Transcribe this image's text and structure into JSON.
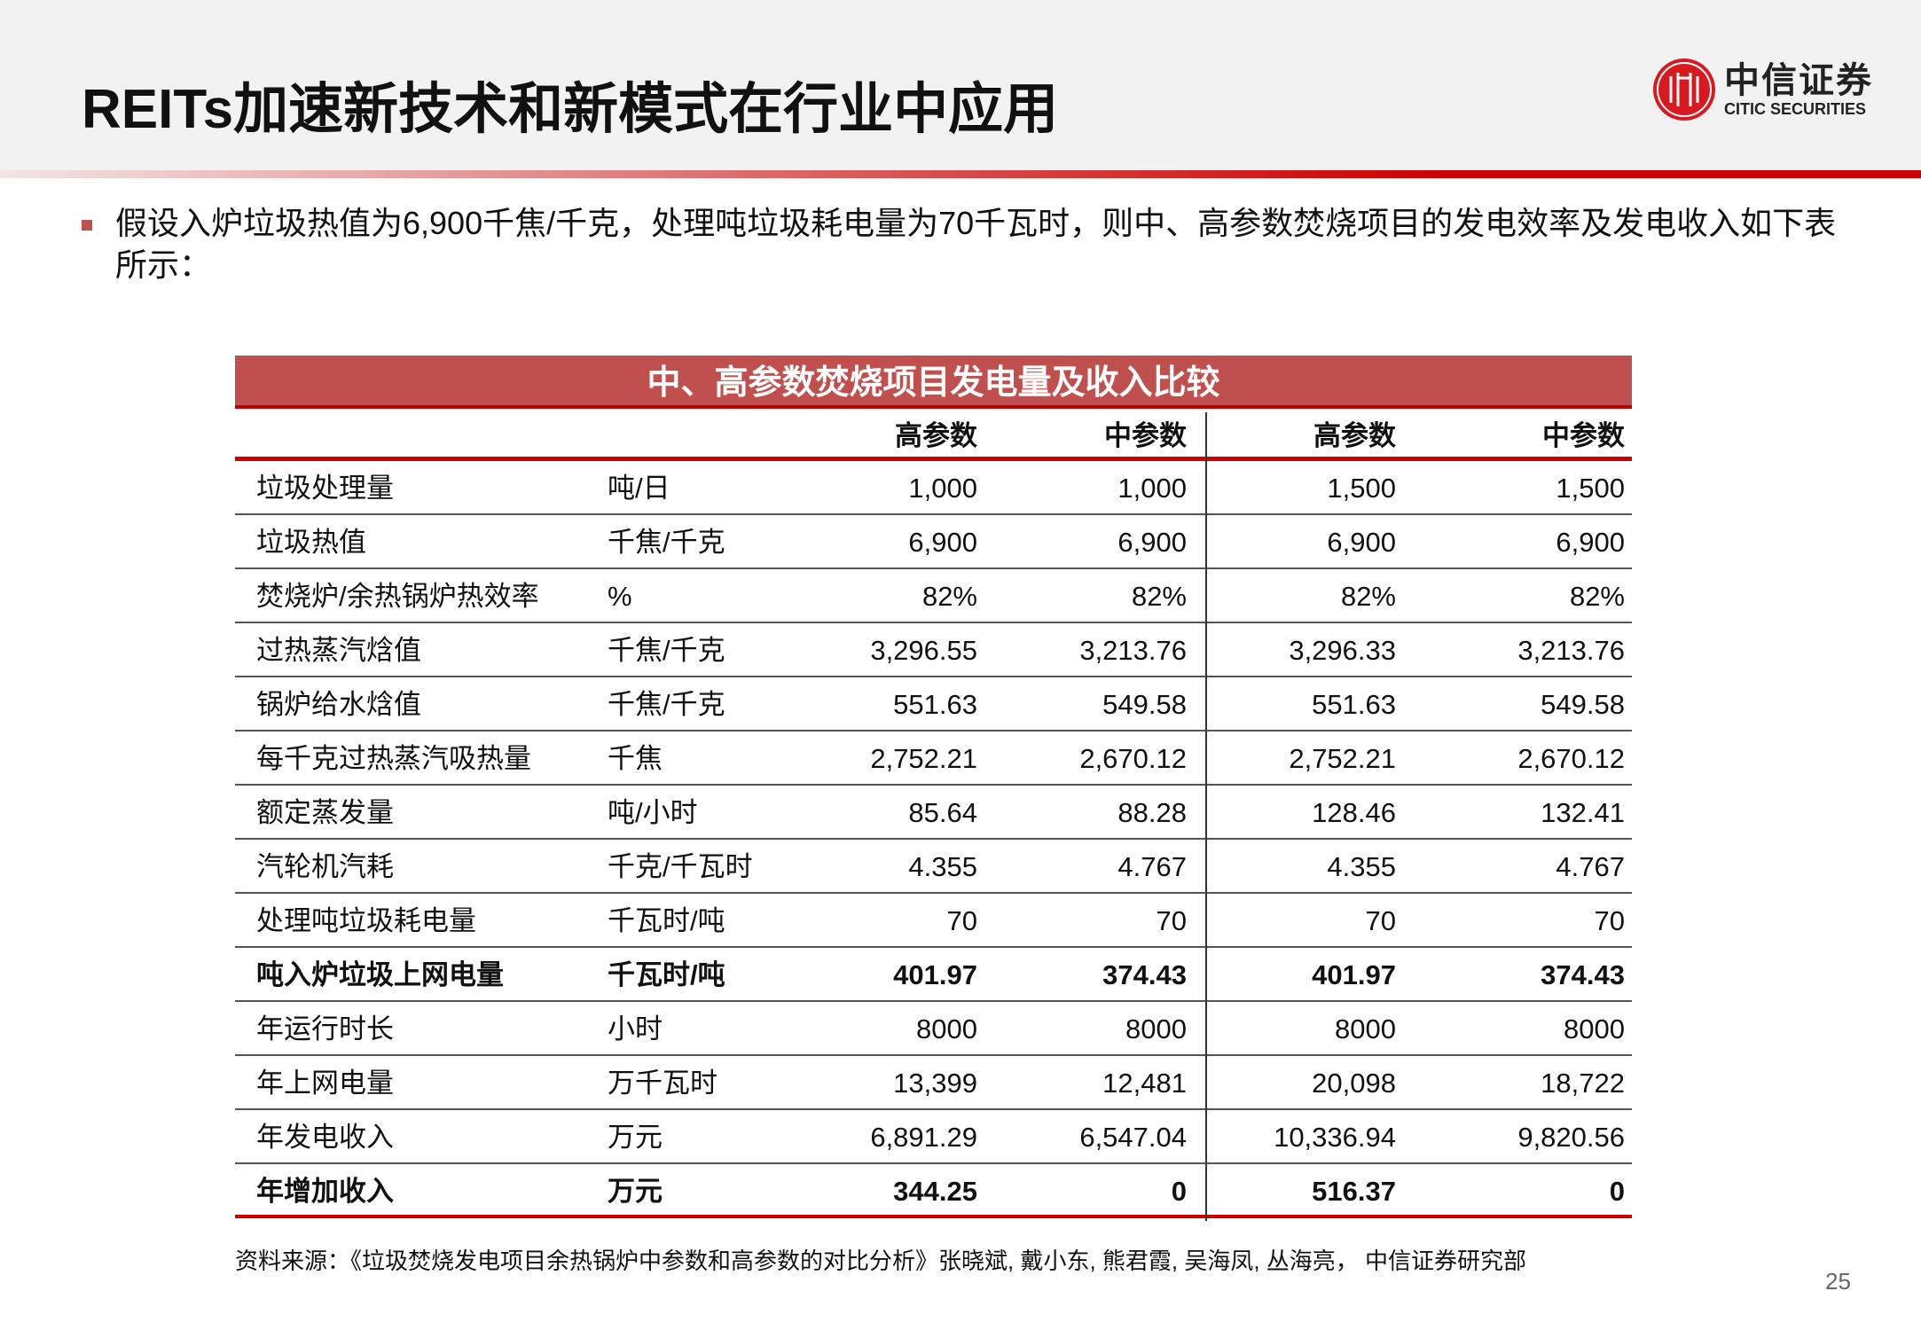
{
  "header": {
    "title": "REITs加速新技术和新模式在行业中应用",
    "logo_cn": "中信证券",
    "logo_en": "CITIC SECURITIES",
    "brand_color": "#c00000"
  },
  "bullet": "假设入炉垃圾热值为6,900千焦/千克，处理吨垃圾耗电量为70千瓦时，则中、高参数焚烧项目的发电效率及发电收入如下表所示：",
  "table": {
    "title": "中、高参数焚烧项目发电量及收入比较",
    "columns": [
      "",
      "",
      "高参数",
      "中参数",
      "高参数",
      "中参数"
    ],
    "rows": [
      {
        "label": "垃圾处理量",
        "unit": "吨/日",
        "values": [
          "1,000",
          "1,000",
          "1,500",
          "1,500"
        ]
      },
      {
        "label": "垃圾热值",
        "unit": "千焦/千克",
        "values": [
          "6,900",
          "6,900",
          "6,900",
          "6,900"
        ]
      },
      {
        "label": "焚烧炉/余热锅炉热效率",
        "unit": "%",
        "values": [
          "82%",
          "82%",
          "82%",
          "82%"
        ]
      },
      {
        "label": "过热蒸汽焓值",
        "unit": "千焦/千克",
        "values": [
          "3,296.55",
          "3,213.76",
          "3,296.33",
          "3,213.76"
        ]
      },
      {
        "label": "锅炉给水焓值",
        "unit": "千焦/千克",
        "values": [
          "551.63",
          "549.58",
          "551.63",
          "549.58"
        ]
      },
      {
        "label": "每千克过热蒸汽吸热量",
        "unit": "千焦",
        "values": [
          "2,752.21",
          "2,670.12",
          "2,752.21",
          "2,670.12"
        ]
      },
      {
        "label": "额定蒸发量",
        "unit": "吨/小时",
        "values": [
          "85.64",
          "88.28",
          "128.46",
          "132.41"
        ]
      },
      {
        "label": "汽轮机汽耗",
        "unit": "千克/千瓦时",
        "values": [
          "4.355",
          "4.767",
          "4.355",
          "4.767"
        ]
      },
      {
        "label": "处理吨垃圾耗电量",
        "unit": "千瓦时/吨",
        "values": [
          "70",
          "70",
          "70",
          "70"
        ]
      },
      {
        "label": "吨入炉垃圾上网电量",
        "unit": "千瓦时/吨",
        "values": [
          "401.97",
          "374.43",
          "401.97",
          "374.43"
        ],
        "bold": true
      },
      {
        "label": "年运行时长",
        "unit": "小时",
        "values": [
          "8000",
          "8000",
          "8000",
          "8000"
        ]
      },
      {
        "label": "年上网电量",
        "unit": "万千瓦时",
        "values": [
          "13,399",
          "12,481",
          "20,098",
          "18,722"
        ]
      },
      {
        "label": "年发电收入",
        "unit": "万元",
        "values": [
          "6,891.29",
          "6,547.04",
          "10,336.94",
          "9,820.56"
        ]
      },
      {
        "label": "年增加收入",
        "unit": "万元",
        "values": [
          "344.25",
          "0",
          "516.37",
          "0"
        ],
        "bold": true
      }
    ]
  },
  "source": "资料来源：《垃圾焚烧发电项目余热锅炉中参数和高参数的对比分析》张晓斌, 戴小东, 熊君霞, 吴海凤, 丛海亮， 中信证券研究部",
  "page_number": "25"
}
